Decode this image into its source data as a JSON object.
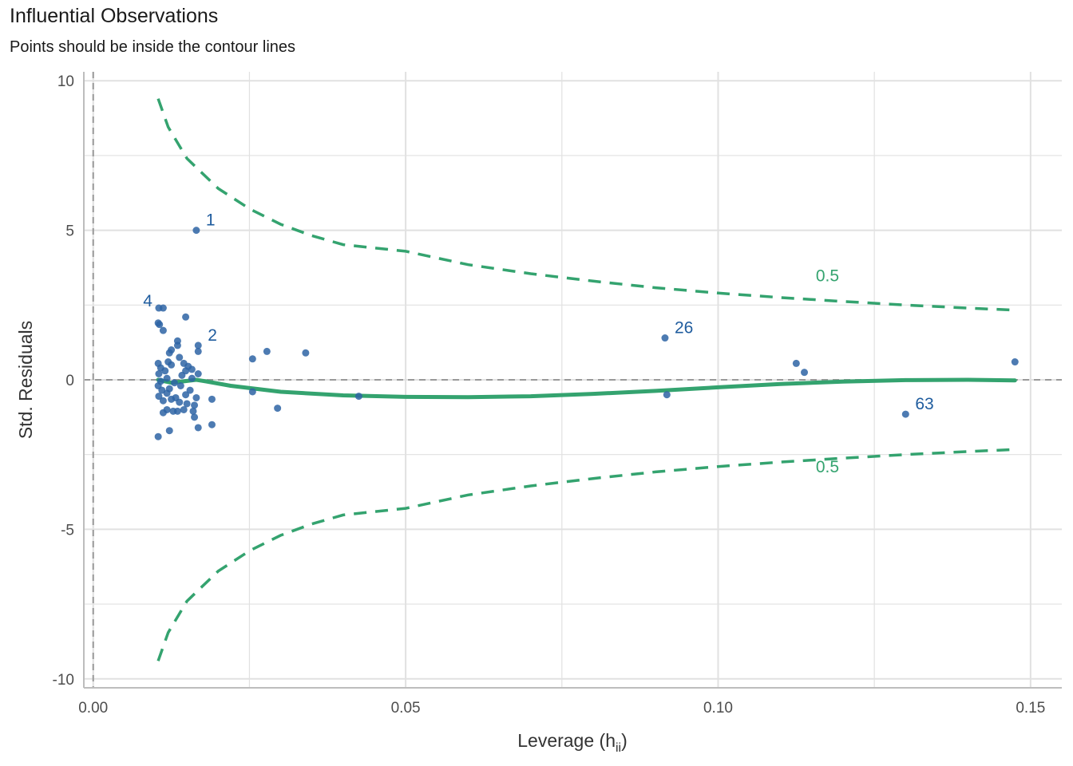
{
  "chart_data": {
    "type": "scatter",
    "title": "Influential Observations",
    "subtitle": "Points should be inside the contour lines",
    "xlabel": "Leverage (h",
    "xlabel_sub": "ii",
    "xlabel_close": ")",
    "ylabel": "Std. Residuals",
    "xlim": [
      -0.0015,
      0.155
    ],
    "ylim": [
      -10.3,
      10.3
    ],
    "x_ticks": [
      0.0,
      0.05,
      0.1,
      0.15
    ],
    "x_tick_labels": [
      "0.00",
      "0.05",
      "0.10",
      "0.15"
    ],
    "y_ticks": [
      10,
      5,
      0,
      -5,
      -10
    ],
    "y_tick_labels": [
      "10",
      "5",
      "0",
      "-5",
      "-10"
    ],
    "grid": true,
    "colors": {
      "points": "#2e64a5",
      "labels": "#1f5c9e",
      "smooth": "#34a36f",
      "contour": "#34a36f",
      "refline": "#999999",
      "grid": "#e1e1e1"
    },
    "points": [
      {
        "x": 0.0165,
        "y": 5.0,
        "label": "1"
      },
      {
        "x": 0.0168,
        "y": 1.15,
        "label": "2"
      },
      {
        "x": 0.0105,
        "y": 2.4,
        "label": "4"
      },
      {
        "x": 0.0915,
        "y": 1.4,
        "label": "26"
      },
      {
        "x": 0.13,
        "y": -1.15,
        "label": "63"
      },
      {
        "x": 0.0112,
        "y": 2.4
      },
      {
        "x": 0.0104,
        "y": 1.9
      },
      {
        "x": 0.0106,
        "y": 1.85
      },
      {
        "x": 0.0112,
        "y": 1.65
      },
      {
        "x": 0.0148,
        "y": 2.1
      },
      {
        "x": 0.0135,
        "y": 1.3
      },
      {
        "x": 0.0125,
        "y": 1.0
      },
      {
        "x": 0.0135,
        "y": 1.15
      },
      {
        "x": 0.0122,
        "y": 0.9
      },
      {
        "x": 0.0168,
        "y": 0.95
      },
      {
        "x": 0.0104,
        "y": 0.55
      },
      {
        "x": 0.0108,
        "y": 0.4
      },
      {
        "x": 0.0115,
        "y": 0.3
      },
      {
        "x": 0.012,
        "y": 0.6
      },
      {
        "x": 0.0125,
        "y": 0.5
      },
      {
        "x": 0.0138,
        "y": 0.75
      },
      {
        "x": 0.0145,
        "y": 0.55
      },
      {
        "x": 0.0152,
        "y": 0.45
      },
      {
        "x": 0.0148,
        "y": 0.3
      },
      {
        "x": 0.0158,
        "y": 0.35
      },
      {
        "x": 0.0142,
        "y": 0.15
      },
      {
        "x": 0.0105,
        "y": 0.2
      },
      {
        "x": 0.0118,
        "y": 0.05
      },
      {
        "x": 0.013,
        "y": -0.1
      },
      {
        "x": 0.0104,
        "y": -0.2
      },
      {
        "x": 0.011,
        "y": -0.35
      },
      {
        "x": 0.0122,
        "y": -0.3
      },
      {
        "x": 0.014,
        "y": -0.2
      },
      {
        "x": 0.0148,
        "y": -0.5
      },
      {
        "x": 0.0155,
        "y": -0.35
      },
      {
        "x": 0.0165,
        "y": -0.6
      },
      {
        "x": 0.0105,
        "y": -0.55
      },
      {
        "x": 0.0112,
        "y": -0.7
      },
      {
        "x": 0.0125,
        "y": -0.65
      },
      {
        "x": 0.0138,
        "y": -0.75
      },
      {
        "x": 0.015,
        "y": -0.8
      },
      {
        "x": 0.0162,
        "y": -0.85
      },
      {
        "x": 0.0118,
        "y": -1.0
      },
      {
        "x": 0.0128,
        "y": -1.05
      },
      {
        "x": 0.0145,
        "y": -1.0
      },
      {
        "x": 0.016,
        "y": -1.05
      },
      {
        "x": 0.0112,
        "y": -1.1
      },
      {
        "x": 0.0135,
        "y": -1.05
      },
      {
        "x": 0.0162,
        "y": -1.25
      },
      {
        "x": 0.0168,
        "y": -1.6
      },
      {
        "x": 0.0122,
        "y": -1.7
      },
      {
        "x": 0.0104,
        "y": -1.9
      },
      {
        "x": 0.019,
        "y": -1.5
      },
      {
        "x": 0.019,
        "y": -0.65
      },
      {
        "x": 0.0168,
        "y": 0.2
      },
      {
        "x": 0.0118,
        "y": -0.45
      },
      {
        "x": 0.0132,
        "y": -0.6
      },
      {
        "x": 0.0158,
        "y": 0.05
      },
      {
        "x": 0.0108,
        "y": -0.05
      },
      {
        "x": 0.0255,
        "y": 0.7
      },
      {
        "x": 0.0278,
        "y": 0.95
      },
      {
        "x": 0.034,
        "y": 0.9
      },
      {
        "x": 0.0255,
        "y": -0.4
      },
      {
        "x": 0.0295,
        "y": -0.95
      },
      {
        "x": 0.0425,
        "y": -0.55
      },
      {
        "x": 0.0918,
        "y": -0.5
      },
      {
        "x": 0.1125,
        "y": 0.55
      },
      {
        "x": 0.1138,
        "y": 0.25
      },
      {
        "x": 0.1475,
        "y": 0.6
      }
    ],
    "smooth_line": {
      "x": [
        0.0104,
        0.0125,
        0.0145,
        0.0165,
        0.018,
        0.022,
        0.03,
        0.04,
        0.05,
        0.06,
        0.07,
        0.08,
        0.09,
        0.1,
        0.11,
        0.12,
        0.13,
        0.14,
        0.1475
      ],
      "y": [
        0.0,
        -0.1,
        -0.05,
        0.0,
        -0.05,
        -0.2,
        -0.4,
        -0.52,
        -0.57,
        -0.58,
        -0.55,
        -0.47,
        -0.37,
        -0.25,
        -0.14,
        -0.06,
        -0.01,
        0.0,
        -0.02
      ]
    },
    "contour_upper": {
      "label": "0.5",
      "x": [
        0.0104,
        0.012,
        0.015,
        0.02,
        0.025,
        0.03,
        0.035,
        0.04,
        0.05,
        0.06,
        0.07,
        0.08,
        0.09,
        0.1,
        0.11,
        0.12,
        0.13,
        0.14,
        0.1475
      ],
      "y": [
        9.4,
        8.45,
        7.4,
        6.4,
        5.72,
        5.2,
        4.82,
        4.52,
        4.3,
        3.85,
        3.55,
        3.3,
        3.08,
        2.9,
        2.75,
        2.62,
        2.5,
        2.4,
        2.33
      ]
    },
    "contour_lower": {
      "label": "0.5",
      "x": [
        0.0104,
        0.012,
        0.015,
        0.02,
        0.025,
        0.03,
        0.035,
        0.04,
        0.05,
        0.06,
        0.07,
        0.08,
        0.09,
        0.1,
        0.11,
        0.12,
        0.13,
        0.14,
        0.1475
      ],
      "y": [
        -9.4,
        -8.45,
        -7.4,
        -6.4,
        -5.72,
        -5.2,
        -4.82,
        -4.52,
        -4.3,
        -3.85,
        -3.55,
        -3.3,
        -3.08,
        -2.9,
        -2.75,
        -2.62,
        -2.5,
        -2.4,
        -2.33
      ]
    },
    "contour_label_pos": [
      {
        "x": 0.1175,
        "y": 3.3
      },
      {
        "x": 0.1175,
        "y": -3.1
      }
    ]
  }
}
